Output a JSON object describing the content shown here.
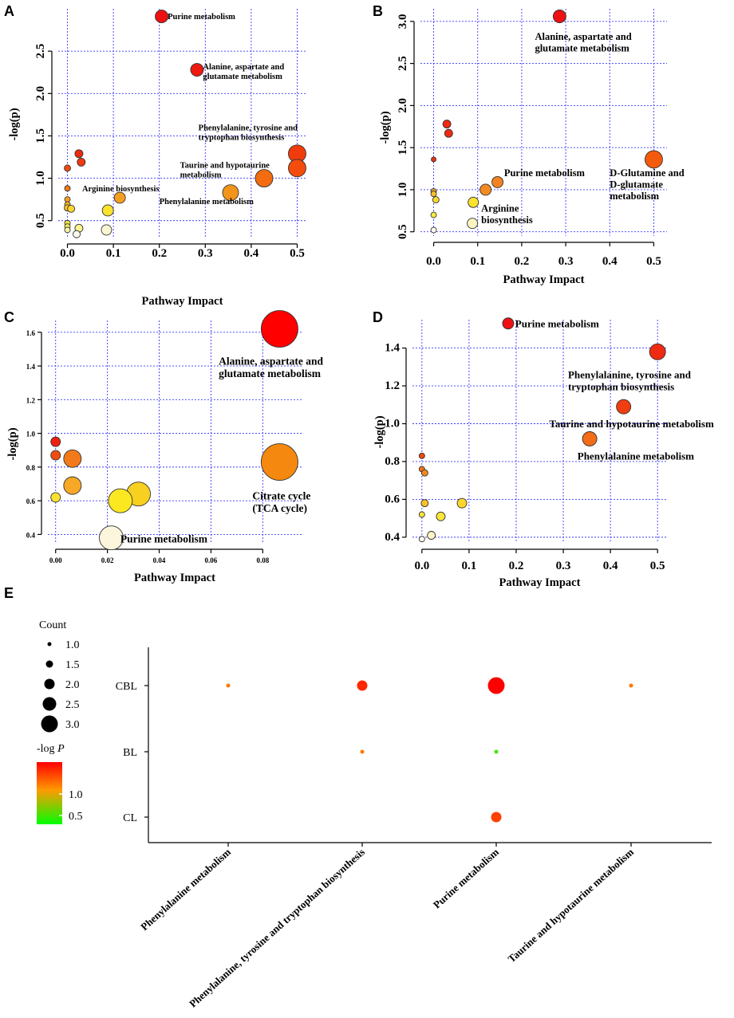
{
  "colors": {
    "grid": "#3a3aff",
    "highlight": "#ff0000"
  },
  "chart_data": [
    {
      "panel": "A",
      "type": "scatter",
      "xlabel": "Pathway Impact",
      "ylabel": "-log(p)",
      "xlim": [
        -0.02,
        0.52
      ],
      "ylim": [
        0.3,
        3.0
      ],
      "xticks": [
        0.0,
        0.1,
        0.2,
        0.3,
        0.4,
        0.5
      ],
      "xtick_labels": [
        "0.0",
        "0.1",
        "0.2",
        "0.3",
        "0.4",
        "0.5"
      ],
      "yticks": [
        0.5,
        1.0,
        1.5,
        2.0,
        2.5
      ],
      "ytick_labels": [
        "0.5",
        "1.0",
        "1.5",
        "2.0",
        "2.5"
      ],
      "points": [
        {
          "x": 0.205,
          "y": 2.91,
          "r": 8,
          "color": "#ee1111",
          "label": [
            "Purine metabolism"
          ],
          "lx": 0.218,
          "ly": 2.91
        },
        {
          "x": 0.282,
          "y": 2.28,
          "r": 8,
          "color": "#ee1a10",
          "label": [
            "Alanine, aspartate and",
            "glutamate metabolism"
          ],
          "lx": 0.295,
          "ly": 2.32
        },
        {
          "x": 0.5,
          "y": 1.29,
          "r": 11,
          "color": "#f03c0c",
          "label": [
            "Phenylalanine, tyrosine and",
            "tryptophan biosynthesis"
          ],
          "lx": 0.285,
          "ly": 1.6
        },
        {
          "x": 0.5,
          "y": 1.12,
          "r": 11,
          "color": "#f34c0c",
          "label": [],
          "lx": 0,
          "ly": 0
        },
        {
          "x": 0.428,
          "y": 1.0,
          "r": 11,
          "color": "#f36c10",
          "label": [
            "Taurine and hypotaurine",
            "metabolism"
          ],
          "lx": 0.245,
          "ly": 1.16
        },
        {
          "x": 0.355,
          "y": 0.83,
          "r": 10,
          "color": "#f3941a",
          "label": [
            "Phenylalanine metabolism"
          ],
          "lx": 0.2,
          "ly": 0.73
        },
        {
          "x": 0.114,
          "y": 0.77,
          "r": 7,
          "color": "#f59f20",
          "label": [
            "Arginine biosynthesis"
          ],
          "lx": 0.032,
          "ly": 0.88
        },
        {
          "x": 0.025,
          "y": 1.29,
          "r": 5,
          "color": "#ee2a10",
          "label": [],
          "lx": 0,
          "ly": 0
        },
        {
          "x": 0.03,
          "y": 1.19,
          "r": 5,
          "color": "#f03a10",
          "label": [],
          "lx": 0,
          "ly": 0
        },
        {
          "x": 0.0,
          "y": 1.12,
          "r": 4,
          "color": "#f04a12",
          "label": [],
          "lx": 0,
          "ly": 0
        },
        {
          "x": 0.0,
          "y": 0.88,
          "r": 3.5,
          "color": "#f37a14",
          "label": [],
          "lx": 0,
          "ly": 0
        },
        {
          "x": 0.0,
          "y": 0.75,
          "r": 3.5,
          "color": "#f5a020",
          "label": [],
          "lx": 0,
          "ly": 0
        },
        {
          "x": 0.0,
          "y": 0.69,
          "r": 3.5,
          "color": "#f7b628",
          "label": [],
          "lx": 0,
          "ly": 0
        },
        {
          "x": 0.0,
          "y": 0.65,
          "r": 4,
          "color": "#f9c32a",
          "label": [],
          "lx": 0,
          "ly": 0
        },
        {
          "x": 0.008,
          "y": 0.64,
          "r": 4.5,
          "color": "#fbd630",
          "label": [],
          "lx": 0,
          "ly": 0
        },
        {
          "x": 0.088,
          "y": 0.62,
          "r": 7,
          "color": "#fbe22c",
          "label": [],
          "lx": 0,
          "ly": 0
        },
        {
          "x": 0.0,
          "y": 0.47,
          "r": 3.5,
          "color": "#fbe63a",
          "label": [],
          "lx": 0,
          "ly": 0
        },
        {
          "x": 0.0,
          "y": 0.43,
          "r": 3.5,
          "color": "#fcee50",
          "label": [],
          "lx": 0,
          "ly": 0
        },
        {
          "x": 0.0,
          "y": 0.39,
          "r": 3.5,
          "color": "#fdf3a8",
          "label": [],
          "lx": 0,
          "ly": 0
        },
        {
          "x": 0.025,
          "y": 0.41,
          "r": 5,
          "color": "#fdf590",
          "label": [],
          "lx": 0,
          "ly": 0
        },
        {
          "x": 0.085,
          "y": 0.39,
          "r": 6.5,
          "color": "#fbf6d2",
          "label": [],
          "lx": 0,
          "ly": 0
        },
        {
          "x": 0.02,
          "y": 0.34,
          "r": 4.5,
          "color": "#fffbee",
          "label": [],
          "lx": 0,
          "ly": 0
        }
      ]
    },
    {
      "panel": "B",
      "type": "scatter",
      "xlabel": "Pathway Impact",
      "ylabel": "-log(p)",
      "xlim": [
        -0.03,
        0.53
      ],
      "ylim": [
        0.45,
        3.15
      ],
      "xticks": [
        0.0,
        0.1,
        0.2,
        0.3,
        0.4,
        0.5
      ],
      "xtick_labels": [
        "0.0",
        "0.1",
        "0.2",
        "0.3",
        "0.4",
        "0.5"
      ],
      "yticks": [
        0.5,
        1.0,
        1.5,
        2.0,
        2.5,
        3.0
      ],
      "ytick_labels": [
        "0.5",
        "1.0",
        "1.5",
        "2.0",
        "2.5",
        "3.0"
      ],
      "points": [
        {
          "x": 0.286,
          "y": 3.06,
          "r": 8,
          "color": "#ee1111",
          "label": [
            "Alanine, aspartate and",
            "glutamate metabolism"
          ],
          "lx": 0.23,
          "ly": 2.82
        },
        {
          "x": 0.5,
          "y": 1.36,
          "r": 11,
          "color": "#f35a0c",
          "label": [
            "D-Glutamine and",
            "D-glutamate",
            "metabolism"
          ],
          "lx": 0.4,
          "ly": 1.2
        },
        {
          "x": 0.03,
          "y": 1.78,
          "r": 5,
          "color": "#ee2a12",
          "label": [],
          "lx": 0,
          "ly": 0
        },
        {
          "x": 0.034,
          "y": 1.67,
          "r": 5,
          "color": "#ee2a12",
          "label": [],
          "lx": 0,
          "ly": 0
        },
        {
          "x": 0.0,
          "y": 1.36,
          "r": 3,
          "color": "#ee3010",
          "label": [],
          "lx": 0,
          "ly": 0
        },
        {
          "x": 0.145,
          "y": 1.09,
          "r": 7,
          "color": "#f58220",
          "label": [
            "Purine metabolism"
          ],
          "lx": 0.16,
          "ly": 1.2
        },
        {
          "x": 0.118,
          "y": 1.0,
          "r": 7,
          "color": "#f58a22",
          "label": [],
          "lx": 0,
          "ly": 0
        },
        {
          "x": 0.0,
          "y": 0.98,
          "r": 3.5,
          "color": "#f7a826",
          "label": [],
          "lx": 0,
          "ly": 0
        },
        {
          "x": 0.0,
          "y": 0.95,
          "r": 3.5,
          "color": "#f9c02a",
          "label": [],
          "lx": 0,
          "ly": 0
        },
        {
          "x": 0.005,
          "y": 0.88,
          "r": 4,
          "color": "#fbd82e",
          "label": [],
          "lx": 0,
          "ly": 0
        },
        {
          "x": 0.09,
          "y": 0.85,
          "r": 6.5,
          "color": "#fbe22c",
          "label": [
            "Arginine",
            "biosynthesis"
          ],
          "lx": 0.108,
          "ly": 0.78
        },
        {
          "x": 0.0,
          "y": 0.7,
          "r": 3.5,
          "color": "#fcea40",
          "label": [],
          "lx": 0,
          "ly": 0
        },
        {
          "x": 0.088,
          "y": 0.6,
          "r": 6.5,
          "color": "#fbf3c0",
          "label": [],
          "lx": 0,
          "ly": 0
        },
        {
          "x": 0.0,
          "y": 0.52,
          "r": 3.5,
          "color": "#fffbee",
          "label": [],
          "lx": 0,
          "ly": 0
        }
      ]
    },
    {
      "panel": "C",
      "type": "scatter",
      "xlabel": "Pathway Impact",
      "ylabel": "-log(p)",
      "xlim": [
        -0.003,
        0.095
      ],
      "ylim": [
        0.35,
        1.67
      ],
      "xticks": [
        0.0,
        0.02,
        0.04,
        0.06,
        0.08
      ],
      "xtick_labels": [
        "0.00",
        "0.02",
        "0.04",
        "0.06",
        "0.08"
      ],
      "yticks": [
        0.4,
        0.6,
        0.8,
        1.0,
        1.2,
        1.4,
        1.6
      ],
      "ytick_labels": [
        "0.4",
        "0.6",
        "0.8",
        "1.0",
        "1.2",
        "1.4",
        "1.6"
      ],
      "points": [
        {
          "x": 0.0865,
          "y": 1.62,
          "r": 23,
          "color": "#ff0000",
          "label": [
            "Alanine, aspartate and",
            "glutamate metabolism"
          ],
          "lx": 0.063,
          "ly": 1.43
        },
        {
          "x": 0.0865,
          "y": 0.83,
          "r": 23,
          "color": "#f5880e",
          "label": [
            "Citrate cycle",
            "(TCA cycle)"
          ],
          "lx": 0.076,
          "ly": 0.63
        },
        {
          "x": 0.0,
          "y": 0.95,
          "r": 6,
          "color": "#ee2010",
          "label": [],
          "lx": 0,
          "ly": 0
        },
        {
          "x": 0.0,
          "y": 0.87,
          "r": 6,
          "color": "#f04c12",
          "label": [],
          "lx": 0,
          "ly": 0
        },
        {
          "x": 0.0065,
          "y": 0.85,
          "r": 11,
          "color": "#f37a18",
          "label": [],
          "lx": 0,
          "ly": 0
        },
        {
          "x": 0.0065,
          "y": 0.69,
          "r": 11,
          "color": "#f7a826",
          "label": [],
          "lx": 0,
          "ly": 0
        },
        {
          "x": 0.0,
          "y": 0.62,
          "r": 6,
          "color": "#f9e033",
          "label": [],
          "lx": 0,
          "ly": 0
        },
        {
          "x": 0.032,
          "y": 0.64,
          "r": 15,
          "color": "#f7d020",
          "label": [],
          "lx": 0,
          "ly": 0
        },
        {
          "x": 0.025,
          "y": 0.6,
          "r": 15,
          "color": "#fbe820",
          "label": [],
          "lx": 0,
          "ly": 0
        },
        {
          "x": 0.0215,
          "y": 0.38,
          "r": 15,
          "color": "#fbf6dc",
          "label": [
            "Purine metabolism"
          ],
          "lx": 0.025,
          "ly": 0.375
        }
      ]
    },
    {
      "panel": "D",
      "type": "scatter",
      "xlabel": "Pathway Impact",
      "ylabel": "-log(p)",
      "xlim": [
        -0.02,
        0.52
      ],
      "ylim": [
        0.37,
        1.55
      ],
      "xticks": [
        0.0,
        0.1,
        0.2,
        0.3,
        0.4,
        0.5
      ],
      "xtick_labels": [
        "0.0",
        "0.1",
        "0.2",
        "0.3",
        "0.4",
        "0.5"
      ],
      "yticks": [
        0.4,
        0.6,
        0.8,
        1.0,
        1.2,
        1.4
      ],
      "ytick_labels": [
        "0.4",
        "0.6",
        "0.8",
        "1.0",
        "1.2",
        "1.4"
      ],
      "points": [
        {
          "x": 0.183,
          "y": 1.53,
          "r": 7,
          "color": "#ee1111",
          "label": [
            "Purine metabolism"
          ],
          "lx": 0.198,
          "ly": 1.53
        },
        {
          "x": 0.5,
          "y": 1.38,
          "r": 10,
          "color": "#ee2a10",
          "label": [
            "Phenylalanine, tyrosine and",
            "tryptophan biosynthesis"
          ],
          "lx": 0.31,
          "ly": 1.26
        },
        {
          "x": 0.428,
          "y": 1.09,
          "r": 9,
          "color": "#f03e10",
          "label": [
            "Taurine and hypotaurine metabolism"
          ],
          "lx": 0.27,
          "ly": 1.0
        },
        {
          "x": 0.356,
          "y": 0.92,
          "r": 9,
          "color": "#f36c18",
          "label": [
            "Phenylalanine metabolism"
          ],
          "lx": 0.33,
          "ly": 0.83
        },
        {
          "x": 0.0,
          "y": 0.83,
          "r": 3.5,
          "color": "#f04a12",
          "label": [],
          "lx": 0,
          "ly": 0
        },
        {
          "x": 0.0,
          "y": 0.76,
          "r": 3.5,
          "color": "#f37218",
          "label": [],
          "lx": 0,
          "ly": 0
        },
        {
          "x": 0.006,
          "y": 0.74,
          "r": 4,
          "color": "#f58a1c",
          "label": [],
          "lx": 0,
          "ly": 0
        },
        {
          "x": 0.006,
          "y": 0.58,
          "r": 4.5,
          "color": "#f9c02a",
          "label": [],
          "lx": 0,
          "ly": 0
        },
        {
          "x": 0.085,
          "y": 0.58,
          "r": 6,
          "color": "#fbd62c",
          "label": [],
          "lx": 0,
          "ly": 0
        },
        {
          "x": 0.0,
          "y": 0.52,
          "r": 3.5,
          "color": "#fbe43a",
          "label": [],
          "lx": 0,
          "ly": 0
        },
        {
          "x": 0.04,
          "y": 0.51,
          "r": 5.5,
          "color": "#fbe63a",
          "label": [],
          "lx": 0,
          "ly": 0
        },
        {
          "x": 0.02,
          "y": 0.41,
          "r": 5,
          "color": "#fcf4c4",
          "label": [],
          "lx": 0,
          "ly": 0
        },
        {
          "x": 0.0,
          "y": 0.39,
          "r": 3.5,
          "color": "#fffbee",
          "label": [],
          "lx": 0,
          "ly": 0
        }
      ]
    },
    {
      "panel": "E",
      "type": "scatter",
      "title": "",
      "categories_x": [
        "Phenylalanine metabolism",
        "Phenylalanine, tyrosine and tryptophan biosynthesis",
        "Purine metabolism",
        "Taurine and hypotaurine metabolism"
      ],
      "highlight_index": 2,
      "categories_y": [
        "CBL",
        "BL",
        "CL"
      ],
      "points": [
        {
          "x": 0,
          "y": 0,
          "count": 1.0,
          "logp": 1.0
        },
        {
          "x": 1,
          "y": 0,
          "count": 2.0,
          "logp": 1.3
        },
        {
          "x": 2,
          "y": 0,
          "count": 3.0,
          "logp": 1.45
        },
        {
          "x": 3,
          "y": 0,
          "count": 1.0,
          "logp": 1.0
        },
        {
          "x": 1,
          "y": 1,
          "count": 1.0,
          "logp": 1.0
        },
        {
          "x": 2,
          "y": 1,
          "count": 1.0,
          "logp": 0.3
        },
        {
          "x": 2,
          "y": 2,
          "count": 2.0,
          "logp": 1.2
        }
      ],
      "size_legend_title": "Count",
      "size_legend": [
        "1.0",
        "1.5",
        "2.0",
        "2.5",
        "3.0"
      ],
      "color_legend_title": "-log",
      "color_legend_title_italic": "P",
      "color_legend_ticks": [
        "1.0",
        "0.5"
      ],
      "color_range": [
        0.1,
        1.45
      ]
    }
  ]
}
